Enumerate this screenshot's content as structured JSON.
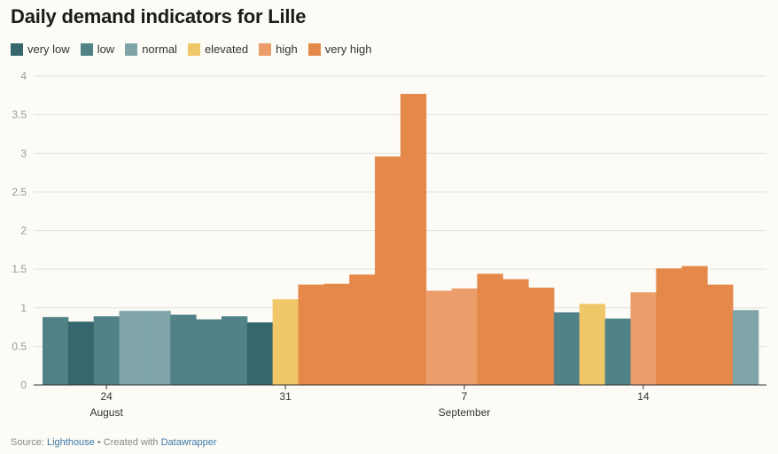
{
  "chart_data": {
    "type": "bar",
    "title": "Daily demand indicators for Lille",
    "ylim": [
      0,
      4
    ],
    "yticks": [
      {
        "value": 0,
        "label": "0"
      },
      {
        "value": 0.5,
        "label": "0.5"
      },
      {
        "value": 1,
        "label": "1"
      },
      {
        "value": 1.5,
        "label": "1.5"
      },
      {
        "value": 2,
        "label": "2"
      },
      {
        "value": 2.5,
        "label": "2.5"
      },
      {
        "value": 3,
        "label": "3"
      },
      {
        "value": 3.5,
        "label": "3.5"
      },
      {
        "value": 4,
        "label": "4"
      }
    ],
    "xticks": [
      {
        "index": 2,
        "label": "24",
        "sublabel": "August"
      },
      {
        "index": 9,
        "label": "31",
        "sublabel": ""
      },
      {
        "index": 16,
        "label": "7",
        "sublabel": "September"
      },
      {
        "index": 23,
        "label": "14",
        "sublabel": ""
      }
    ],
    "legend": [
      {
        "key": "very_low",
        "label": "very low",
        "color": "#37676e"
      },
      {
        "key": "low",
        "label": "low",
        "color": "#518287"
      },
      {
        "key": "normal",
        "label": "normal",
        "color": "#7fa5a9"
      },
      {
        "key": "elevated",
        "label": "elevated",
        "color": "#f0c768"
      },
      {
        "key": "high",
        "label": "high",
        "color": "#eb9d6a"
      },
      {
        "key": "very_high",
        "label": "very high",
        "color": "#e5894a"
      }
    ],
    "days": [
      {
        "value": 0.88,
        "category": "low"
      },
      {
        "value": 0.82,
        "category": "very_low"
      },
      {
        "value": 0.89,
        "category": "low"
      },
      {
        "value": 0.96,
        "category": "normal"
      },
      {
        "value": 0.96,
        "category": "normal"
      },
      {
        "value": 0.91,
        "category": "low"
      },
      {
        "value": 0.85,
        "category": "low"
      },
      {
        "value": 0.89,
        "category": "low"
      },
      {
        "value": 0.81,
        "category": "very_low"
      },
      {
        "value": 1.11,
        "category": "elevated"
      },
      {
        "value": 1.3,
        "category": "very_high"
      },
      {
        "value": 1.31,
        "category": "very_high"
      },
      {
        "value": 1.43,
        "category": "very_high"
      },
      {
        "value": 2.96,
        "category": "very_high"
      },
      {
        "value": 3.77,
        "category": "very_high"
      },
      {
        "value": 1.22,
        "category": "high"
      },
      {
        "value": 1.25,
        "category": "high"
      },
      {
        "value": 1.44,
        "category": "very_high"
      },
      {
        "value": 1.37,
        "category": "very_high"
      },
      {
        "value": 1.26,
        "category": "very_high"
      },
      {
        "value": 0.94,
        "category": "low"
      },
      {
        "value": 1.05,
        "category": "elevated"
      },
      {
        "value": 0.86,
        "category": "low"
      },
      {
        "value": 1.2,
        "category": "high"
      },
      {
        "value": 1.51,
        "category": "very_high"
      },
      {
        "value": 1.54,
        "category": "very_high"
      },
      {
        "value": 1.3,
        "category": "very_high"
      },
      {
        "value": 0.97,
        "category": "normal"
      }
    ]
  },
  "footer": {
    "source_prefix": "Source: ",
    "source_name": "Lighthouse",
    "separator": " • Created with ",
    "tool_name": "Datawrapper"
  }
}
